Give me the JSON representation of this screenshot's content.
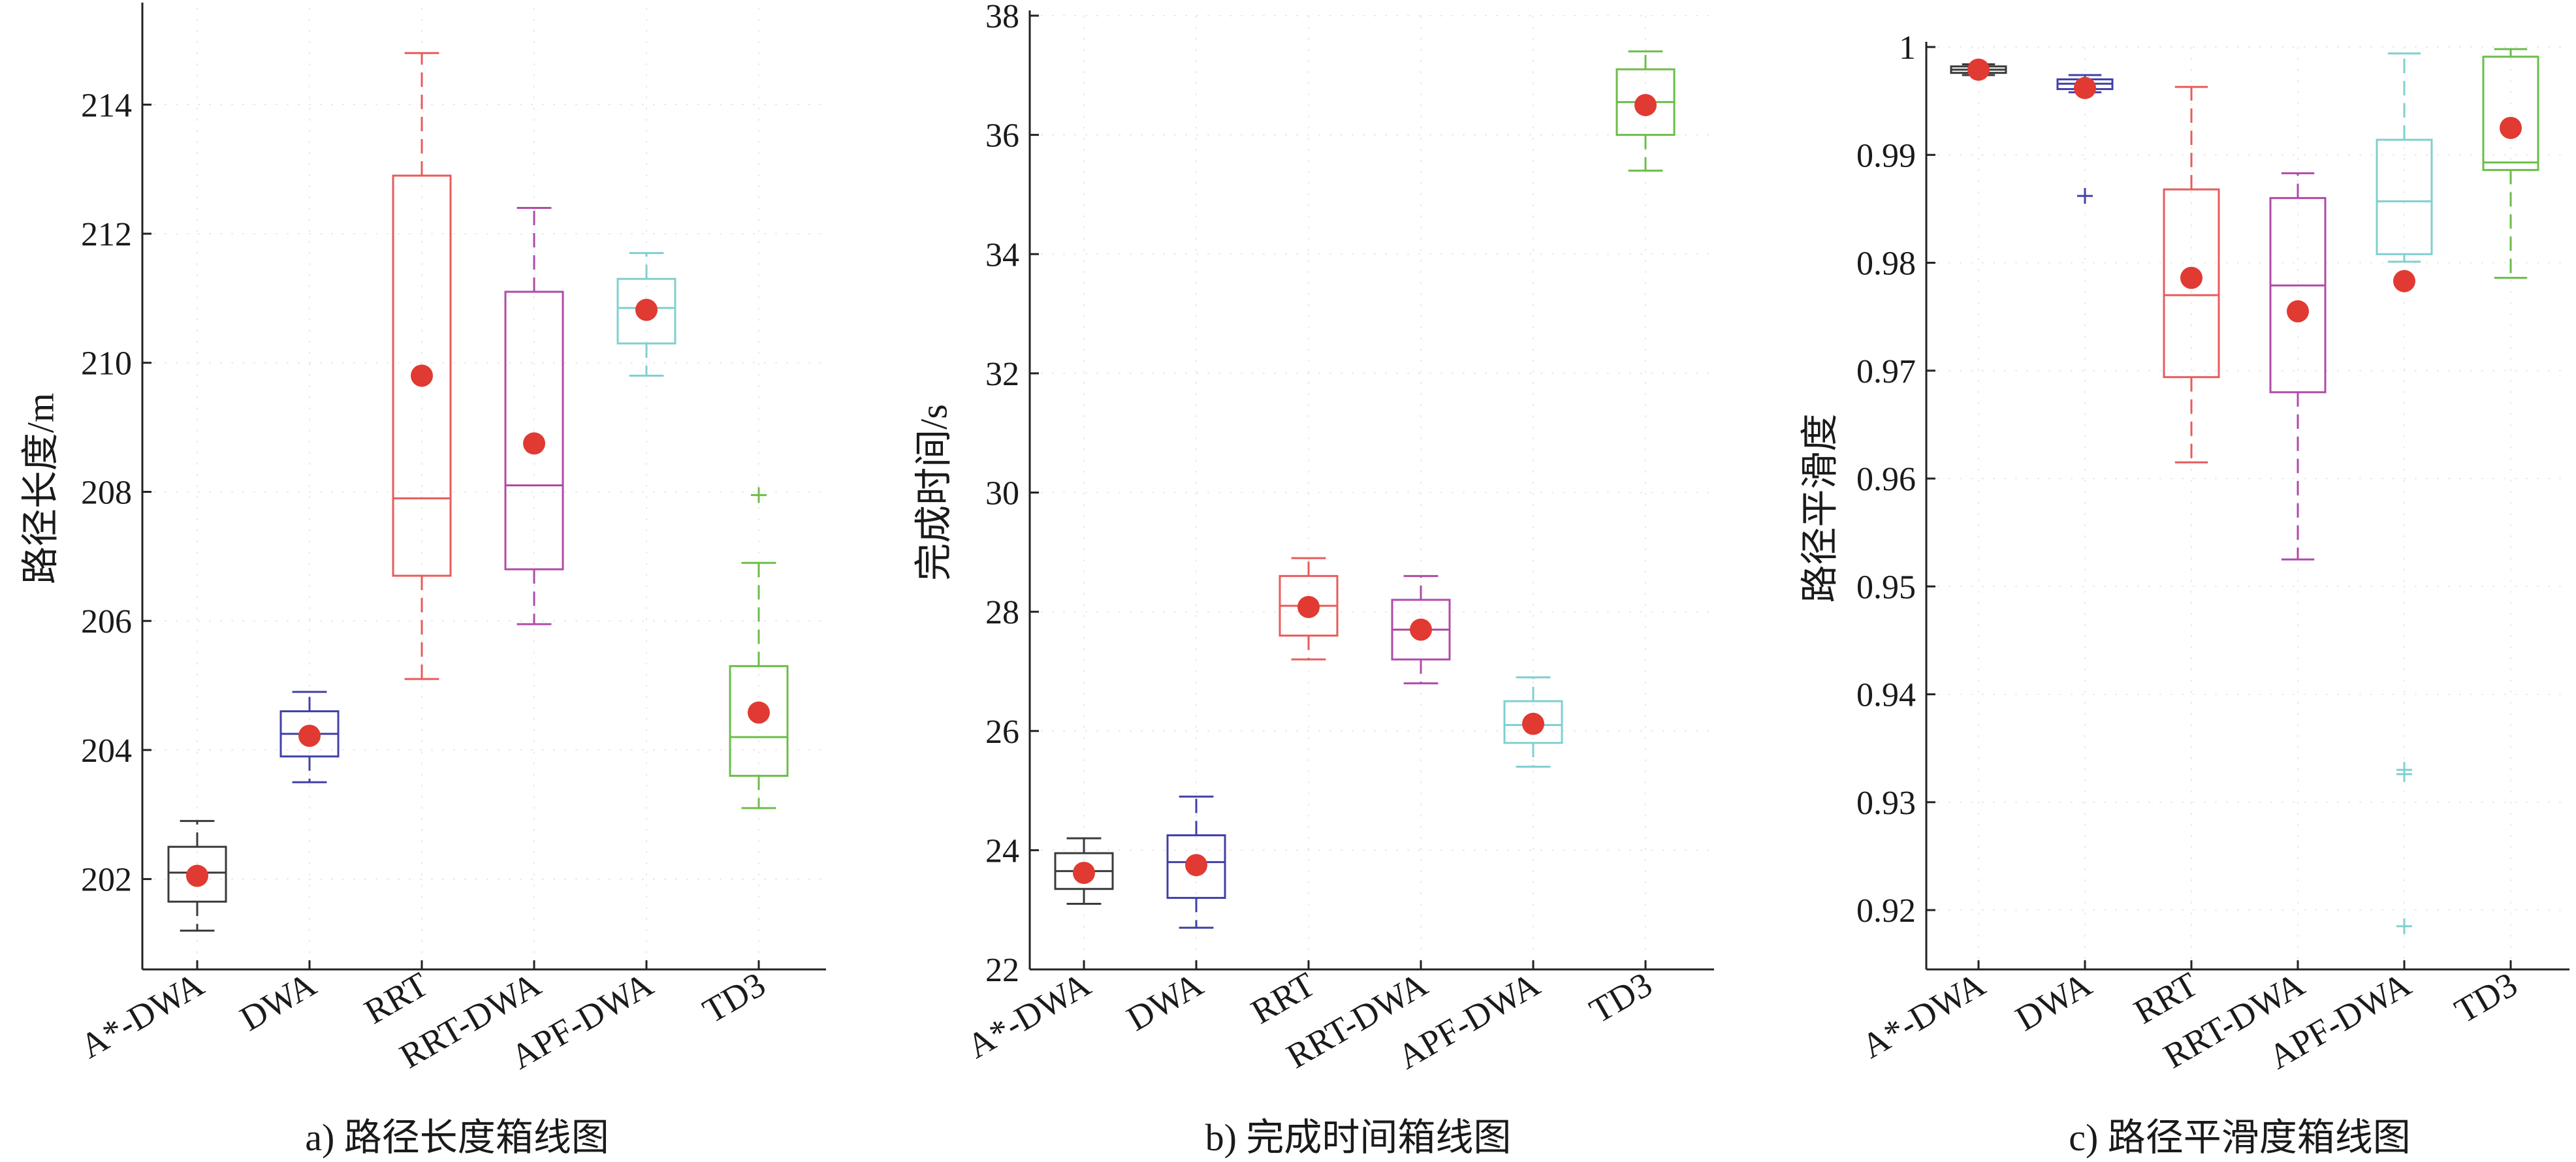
{
  "colors": {
    "A*-DWA": "#3a3a3a",
    "DWA": "#4040a8",
    "RRT": "#e85b5b",
    "RRT-DWA": "#b04aa8",
    "APF-DWA": "#7fd0cf",
    "TD3": "#6cbd4a",
    "mean_marker": "#e03a32",
    "axis": "#222222"
  },
  "chart_data": [
    {
      "id": "a",
      "type": "box",
      "title": "a) 路径长度箱线图",
      "ylabel": "路径长度/m",
      "xlabel": "",
      "ylim": [
        200.6,
        215.5
      ],
      "yticks": [
        202,
        204,
        206,
        208,
        210,
        212,
        214
      ],
      "grid": true,
      "categories": [
        "A*-DWA",
        "DWA",
        "RRT",
        "RRT-DWA",
        "APF-DWA",
        "TD3"
      ],
      "series": [
        {
          "name": "A*-DWA",
          "whisker_low": 201.2,
          "q1": 201.65,
          "median": 202.1,
          "q3": 202.5,
          "whisker_high": 202.9,
          "mean": 202.05,
          "outliers": []
        },
        {
          "name": "DWA",
          "whisker_low": 203.5,
          "q1": 203.9,
          "median": 204.25,
          "q3": 204.6,
          "whisker_high": 204.9,
          "mean": 204.22,
          "outliers": []
        },
        {
          "name": "RRT",
          "whisker_low": 205.1,
          "q1": 206.7,
          "median": 207.9,
          "q3": 212.9,
          "whisker_high": 214.8,
          "mean": 209.8,
          "outliers": []
        },
        {
          "name": "RRT-DWA",
          "whisker_low": 205.95,
          "q1": 206.8,
          "median": 208.1,
          "q3": 211.1,
          "whisker_high": 212.4,
          "mean": 208.75,
          "outliers": []
        },
        {
          "name": "APF-DWA",
          "whisker_low": 209.8,
          "q1": 210.3,
          "median": 210.85,
          "q3": 211.3,
          "whisker_high": 211.7,
          "mean": 210.82,
          "outliers": []
        },
        {
          "name": "TD3",
          "whisker_low": 203.1,
          "q1": 203.6,
          "median": 204.2,
          "q3": 205.3,
          "whisker_high": 206.9,
          "mean": 204.58,
          "outliers": [
            207.95
          ]
        }
      ]
    },
    {
      "id": "b",
      "type": "box",
      "title": "b) 完成时间箱线图",
      "ylabel": "完成时间/s",
      "xlabel": "",
      "ylim": [
        22,
        38
      ],
      "yticks": [
        22,
        24,
        26,
        28,
        30,
        32,
        34,
        36,
        38
      ],
      "grid": true,
      "categories": [
        "A*-DWA",
        "DWA",
        "RRT",
        "RRT-DWA",
        "APF-DWA",
        "TD3"
      ],
      "series": [
        {
          "name": "A*-DWA",
          "whisker_low": 23.1,
          "q1": 23.35,
          "median": 23.65,
          "q3": 23.95,
          "whisker_high": 24.2,
          "mean": 23.62,
          "outliers": []
        },
        {
          "name": "DWA",
          "whisker_low": 22.7,
          "q1": 23.2,
          "median": 23.8,
          "q3": 24.25,
          "whisker_high": 24.9,
          "mean": 23.75,
          "outliers": []
        },
        {
          "name": "RRT",
          "whisker_low": 27.2,
          "q1": 27.6,
          "median": 28.1,
          "q3": 28.6,
          "whisker_high": 28.9,
          "mean": 28.08,
          "outliers": []
        },
        {
          "name": "RRT-DWA",
          "whisker_low": 26.8,
          "q1": 27.2,
          "median": 27.7,
          "q3": 28.2,
          "whisker_high": 28.6,
          "mean": 27.7,
          "outliers": []
        },
        {
          "name": "APF-DWA",
          "whisker_low": 25.4,
          "q1": 25.8,
          "median": 26.1,
          "q3": 26.5,
          "whisker_high": 26.9,
          "mean": 26.12,
          "outliers": []
        },
        {
          "name": "TD3",
          "whisker_low": 35.4,
          "q1": 36.0,
          "median": 36.55,
          "q3": 37.1,
          "whisker_high": 37.4,
          "mean": 36.5,
          "outliers": []
        }
      ]
    },
    {
      "id": "c",
      "type": "box",
      "title": "c) 路径平滑度箱线图",
      "ylabel": "路径平滑度",
      "xlabel": "",
      "ylim": [
        0.9145,
        1.0
      ],
      "yticks": [
        0.92,
        0.93,
        0.94,
        0.95,
        0.96,
        0.97,
        0.98,
        0.99,
        1
      ],
      "ytick_labels": [
        "0.92",
        "0.93",
        "0.94",
        "0.95",
        "0.96",
        "0.97",
        "0.98",
        "0.99",
        "1"
      ],
      "grid": true,
      "categories": [
        "A*-DWA",
        "DWA",
        "RRT",
        "RRT-DWA",
        "APF-DWA",
        "TD3"
      ],
      "series": [
        {
          "name": "A*-DWA",
          "whisker_low": 0.9974,
          "q1": 0.9976,
          "median": 0.9979,
          "q3": 0.9982,
          "whisker_high": 0.9984,
          "mean": 0.9979,
          "outliers": []
        },
        {
          "name": "DWA",
          "whisker_low": 0.9958,
          "q1": 0.9961,
          "median": 0.9966,
          "q3": 0.997,
          "whisker_high": 0.9974,
          "mean": 0.9962,
          "outliers": [
            0.9862
          ]
        },
        {
          "name": "RRT",
          "whisker_low": 0.9615,
          "q1": 0.9694,
          "median": 0.977,
          "q3": 0.9868,
          "whisker_high": 0.9963,
          "mean": 0.9786,
          "outliers": []
        },
        {
          "name": "RRT-DWA",
          "whisker_low": 0.9525,
          "q1": 0.968,
          "median": 0.9779,
          "q3": 0.986,
          "whisker_high": 0.9883,
          "mean": 0.9755,
          "outliers": []
        },
        {
          "name": "APF-DWA",
          "whisker_low": 0.9801,
          "q1": 0.9808,
          "median": 0.9857,
          "q3": 0.9914,
          "whisker_high": 0.9994,
          "mean": 0.9783,
          "outliers": [
            0.933,
            0.9326,
            0.9185
          ]
        },
        {
          "name": "TD3",
          "whisker_low": 0.9786,
          "q1": 0.9886,
          "median": 0.9893,
          "q3": 0.9991,
          "whisker_high": 0.9998,
          "mean": 0.9925,
          "outliers": []
        }
      ]
    }
  ]
}
